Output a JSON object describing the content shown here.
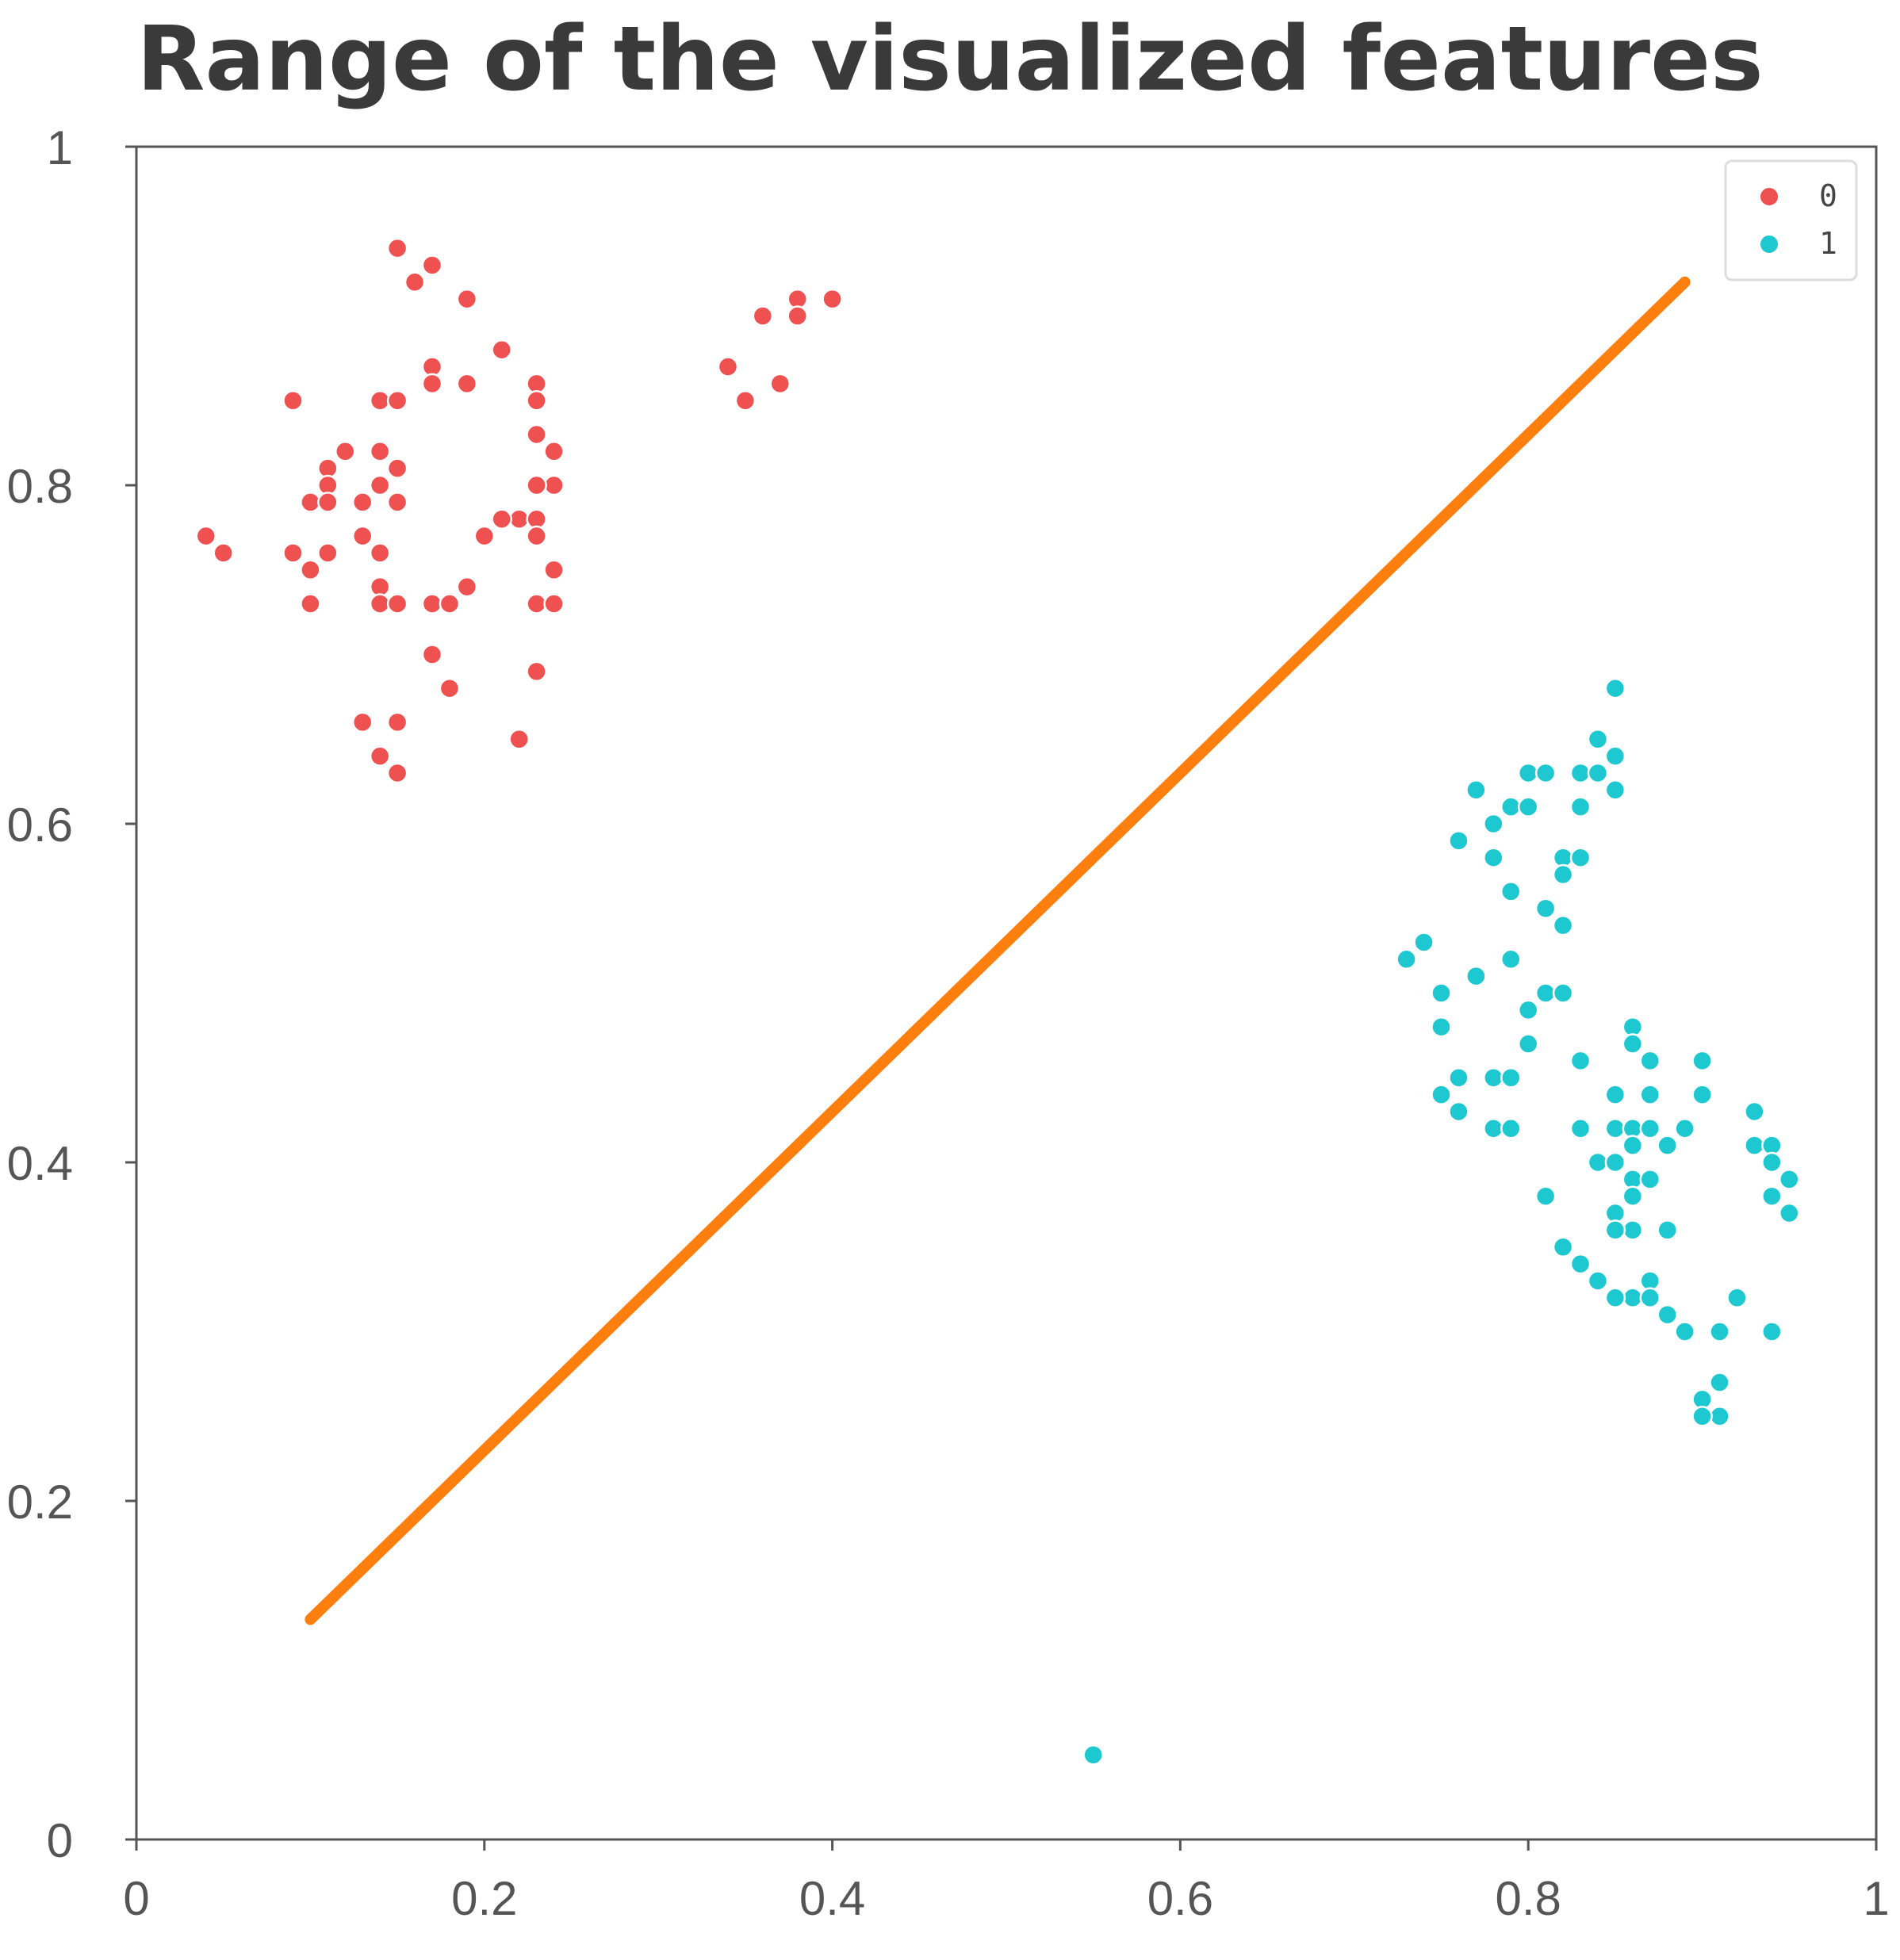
{
  "chart_data": {
    "type": "scatter",
    "title": "Range of the visualized features",
    "xlim": [
      0,
      1
    ],
    "ylim": [
      0,
      1
    ],
    "x_ticks": [
      "0",
      "0.2",
      "0.4",
      "0.6",
      "0.8",
      "1"
    ],
    "y_ticks": [
      "0",
      "0.2",
      "0.4",
      "0.6",
      "0.8",
      "1"
    ],
    "grid": false,
    "legend_position": "top-right",
    "series": [
      {
        "name": "0",
        "color": "#ef5050",
        "points": [
          [
            0.15,
            0.94
          ],
          [
            0.17,
            0.93
          ],
          [
            0.16,
            0.92
          ],
          [
            0.19,
            0.91
          ],
          [
            0.17,
            0.87
          ],
          [
            0.21,
            0.88
          ],
          [
            0.09,
            0.85
          ],
          [
            0.14,
            0.85
          ],
          [
            0.15,
            0.85
          ],
          [
            0.17,
            0.86
          ],
          [
            0.19,
            0.86
          ],
          [
            0.23,
            0.86
          ],
          [
            0.23,
            0.85
          ],
          [
            0.11,
            0.81
          ],
          [
            0.12,
            0.82
          ],
          [
            0.14,
            0.82
          ],
          [
            0.15,
            0.81
          ],
          [
            0.11,
            0.8
          ],
          [
            0.14,
            0.8
          ],
          [
            0.23,
            0.83
          ],
          [
            0.24,
            0.82
          ],
          [
            0.24,
            0.8
          ],
          [
            0.23,
            0.8
          ],
          [
            0.1,
            0.79
          ],
          [
            0.11,
            0.79
          ],
          [
            0.13,
            0.79
          ],
          [
            0.15,
            0.79
          ],
          [
            0.22,
            0.78
          ],
          [
            0.21,
            0.78
          ],
          [
            0.23,
            0.78
          ],
          [
            0.04,
            0.77
          ],
          [
            0.05,
            0.76
          ],
          [
            0.09,
            0.76
          ],
          [
            0.1,
            0.75
          ],
          [
            0.11,
            0.76
          ],
          [
            0.13,
            0.77
          ],
          [
            0.14,
            0.76
          ],
          [
            0.2,
            0.77
          ],
          [
            0.23,
            0.77
          ],
          [
            0.24,
            0.75
          ],
          [
            0.1,
            0.73
          ],
          [
            0.14,
            0.74
          ],
          [
            0.14,
            0.73
          ],
          [
            0.15,
            0.73
          ],
          [
            0.17,
            0.73
          ],
          [
            0.18,
            0.73
          ],
          [
            0.19,
            0.74
          ],
          [
            0.23,
            0.73
          ],
          [
            0.24,
            0.73
          ],
          [
            0.17,
            0.7
          ],
          [
            0.23,
            0.69
          ],
          [
            0.18,
            0.68
          ],
          [
            0.13,
            0.66
          ],
          [
            0.15,
            0.66
          ],
          [
            0.22,
            0.65
          ],
          [
            0.14,
            0.64
          ],
          [
            0.15,
            0.63
          ],
          [
            0.34,
            0.87
          ],
          [
            0.36,
            0.9
          ],
          [
            0.38,
            0.91
          ],
          [
            0.38,
            0.9
          ],
          [
            0.4,
            0.91
          ],
          [
            0.35,
            0.85
          ],
          [
            0.37,
            0.86
          ]
        ]
      },
      {
        "name": "1",
        "color": "#1ec8d0",
        "points": [
          [
            0.85,
            0.68
          ],
          [
            0.84,
            0.65
          ],
          [
            0.85,
            0.64
          ],
          [
            0.77,
            0.62
          ],
          [
            0.8,
            0.63
          ],
          [
            0.81,
            0.63
          ],
          [
            0.83,
            0.63
          ],
          [
            0.84,
            0.63
          ],
          [
            0.85,
            0.62
          ],
          [
            0.79,
            0.61
          ],
          [
            0.8,
            0.61
          ],
          [
            0.83,
            0.61
          ],
          [
            0.78,
            0.6
          ],
          [
            0.76,
            0.59
          ],
          [
            0.78,
            0.58
          ],
          [
            0.82,
            0.58
          ],
          [
            0.83,
            0.58
          ],
          [
            0.82,
            0.57
          ],
          [
            0.79,
            0.56
          ],
          [
            0.81,
            0.55
          ],
          [
            0.82,
            0.54
          ],
          [
            0.74,
            0.53
          ],
          [
            0.73,
            0.52
          ],
          [
            0.77,
            0.51
          ],
          [
            0.79,
            0.52
          ],
          [
            0.75,
            0.5
          ],
          [
            0.81,
            0.5
          ],
          [
            0.82,
            0.5
          ],
          [
            0.8,
            0.49
          ],
          [
            0.8,
            0.47
          ],
          [
            0.75,
            0.48
          ],
          [
            0.86,
            0.48
          ],
          [
            0.86,
            0.47
          ],
          [
            0.87,
            0.46
          ],
          [
            0.83,
            0.46
          ],
          [
            0.76,
            0.45
          ],
          [
            0.78,
            0.45
          ],
          [
            0.79,
            0.45
          ],
          [
            0.9,
            0.46
          ],
          [
            0.75,
            0.44
          ],
          [
            0.76,
            0.43
          ],
          [
            0.85,
            0.44
          ],
          [
            0.87,
            0.44
          ],
          [
            0.9,
            0.44
          ],
          [
            0.76,
            0.43
          ],
          [
            0.78,
            0.42
          ],
          [
            0.79,
            0.42
          ],
          [
            0.93,
            0.43
          ],
          [
            0.83,
            0.42
          ],
          [
            0.85,
            0.42
          ],
          [
            0.86,
            0.42
          ],
          [
            0.87,
            0.42
          ],
          [
            0.89,
            0.42
          ],
          [
            0.86,
            0.41
          ],
          [
            0.88,
            0.41
          ],
          [
            0.93,
            0.41
          ],
          [
            0.94,
            0.41
          ],
          [
            0.84,
            0.4
          ],
          [
            0.85,
            0.4
          ],
          [
            0.86,
            0.39
          ],
          [
            0.87,
            0.39
          ],
          [
            0.94,
            0.4
          ],
          [
            0.95,
            0.39
          ],
          [
            0.81,
            0.38
          ],
          [
            0.86,
            0.38
          ],
          [
            0.85,
            0.37
          ],
          [
            0.94,
            0.38
          ],
          [
            0.86,
            0.36
          ],
          [
            0.85,
            0.36
          ],
          [
            0.88,
            0.36
          ],
          [
            0.95,
            0.37
          ],
          [
            0.82,
            0.35
          ],
          [
            0.83,
            0.34
          ],
          [
            0.84,
            0.33
          ],
          [
            0.86,
            0.32
          ],
          [
            0.85,
            0.32
          ],
          [
            0.87,
            0.33
          ],
          [
            0.87,
            0.32
          ],
          [
            0.88,
            0.31
          ],
          [
            0.89,
            0.3
          ],
          [
            0.92,
            0.32
          ],
          [
            0.91,
            0.3
          ],
          [
            0.94,
            0.3
          ],
          [
            0.91,
            0.27
          ],
          [
            0.9,
            0.26
          ],
          [
            0.91,
            0.25
          ],
          [
            0.9,
            0.25
          ],
          [
            0.55,
            0.05
          ]
        ]
      },
      {
        "name": "",
        "type": "line",
        "color": "#ff7f0e",
        "points": [
          [
            0.1,
            0.13
          ],
          [
            0.89,
            0.92
          ]
        ]
      }
    ]
  }
}
